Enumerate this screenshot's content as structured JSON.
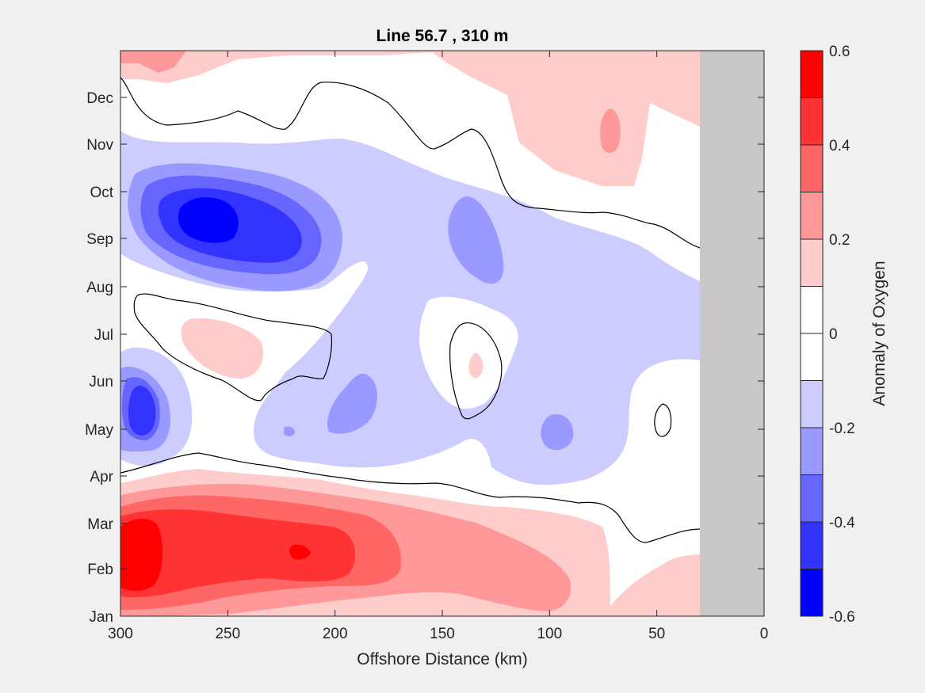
{
  "chart_data": {
    "type": "contour",
    "title": "Line 56.7 , 310 m",
    "xlabel": "Offshore Distance (km)",
    "colorbar_label": "Anomaly of Oxygen",
    "xlim": [
      300,
      0
    ],
    "x_ticks": [
      "300",
      "250",
      "200",
      "150",
      "100",
      "50",
      "0"
    ],
    "y_ticks": [
      "Jan",
      "Feb",
      "Mar",
      "Apr",
      "May",
      "Jun",
      "Jul",
      "Aug",
      "Sep",
      "Oct",
      "Nov",
      "Dec"
    ],
    "colorbar_ticks": [
      "0.6",
      "0.4",
      "0.2",
      "0",
      "-0.2",
      "-0.4",
      "-0.6"
    ],
    "colorbar_range": [
      -0.6,
      0.6
    ],
    "contour_step": 0.1,
    "zero_contour": "black line",
    "no_data_region_km": [
      30,
      0
    ],
    "colors": {
      "levels": [
        "#0000ff",
        "#3333ff",
        "#6666ff",
        "#9999ff",
        "#ccccff",
        "#ffffff",
        "#ffffff",
        "#ffcccc",
        "#ff9999",
        "#ff6666",
        "#ff3333",
        "#ff0000"
      ],
      "no_data": "#c8c8c8",
      "background": "#f0f0f0"
    }
  }
}
